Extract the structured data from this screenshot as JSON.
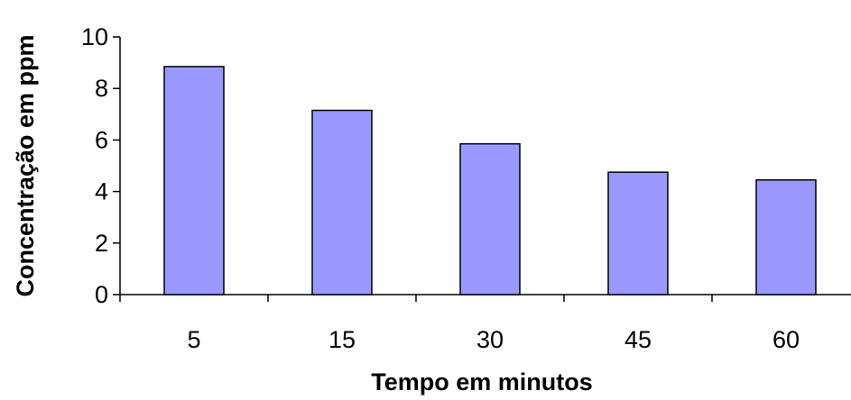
{
  "chart_data": {
    "type": "bar",
    "categories": [
      "5",
      "15",
      "30",
      "45",
      "60"
    ],
    "values": [
      8.85,
      7.15,
      5.85,
      4.75,
      4.45
    ],
    "xlabel": "Tempo em minutos",
    "ylabel": "Concentração em ppm",
    "ylim": [
      0,
      10
    ],
    "yticks": [
      "0",
      "2",
      "4",
      "6",
      "8",
      "10"
    ],
    "grid": false,
    "bar_color": "#9999ff",
    "bar_edge_color": "#000000"
  }
}
